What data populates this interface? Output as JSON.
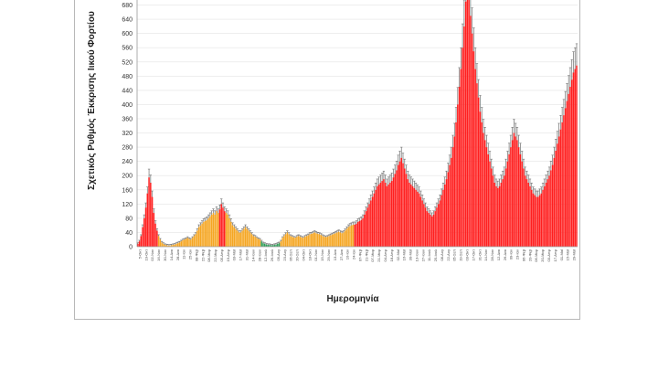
{
  "chart_data": {
    "type": "bar",
    "title": "",
    "xlabel": "Ημερομηνία",
    "ylabel": "Σχετικός Ρυθμός Έκκρισης Ιικού Φορτίου",
    "ylim": [
      0,
      720
    ],
    "yticks": [
      0,
      40,
      80,
      120,
      160,
      200,
      240,
      280,
      320,
      360,
      400,
      440,
      480,
      520,
      560,
      600,
      640,
      680
    ],
    "grid": true,
    "error_bars": true,
    "colors": {
      "red": "#ff1f1f",
      "orange": "#f5a623",
      "green": "#2e9e58",
      "error": "#6f6f6f",
      "grid": "#e3e3e3",
      "axis": "#9a9a9a"
    },
    "x_tick_labels": [
      "5-Οκτ",
      "19-Οκτ",
      "02-Νοε",
      "16-Νοε",
      "30-Νοε",
      "14-Δεκ",
      "28-Δεκ",
      "11-Ιαν",
      "25-Ιαν",
      "08-Φεβ",
      "22-Φεβ",
      "08-Μαρ",
      "22-Μαρ",
      "05-Απρ",
      "19-Απρ",
      "03-Μαϊ",
      "17-Μαϊ",
      "31-Μαϊ",
      "14-Ιουν",
      "28-Ιουν",
      "12-Ιουλ",
      "26-Ιουλ",
      "09-Αυγ",
      "23-Αυγ",
      "06-Σεπ",
      "20-Σεπ",
      "04-Οκτ",
      "18-Οκτ",
      "01-Νοε",
      "15-Νοε",
      "29-Νοε",
      "13-Δεκ",
      "27-Δεκ",
      "10-Ιαν",
      "24-Ιαν",
      "07-Φεβ",
      "21-Φεβ",
      "07-Μαρ",
      "21-Μαρ",
      "04-Απρ",
      "18-Απρ",
      "02-Μαϊ",
      "16-Μαϊ",
      "30-Μαϊ",
      "13-Ιουν",
      "27-Ιουν",
      "11-Ιουλ",
      "25-Ιουλ",
      "08-Αυγ",
      "22-Αυγ",
      "05-Σεπ",
      "19-Σεπ",
      "03-Οκτ",
      "17-Οκτ",
      "31-Οκτ",
      "14-Νοε",
      "28-Νοε",
      "12-Δεκ",
      "26-Δεκ",
      "09-Ιαν",
      "23-Ιαν",
      "06-Φεβ",
      "20-Φεβ",
      "06-Μαρ",
      "20-Μαρ",
      "03-Απρ",
      "17-Απρ",
      "01-Μαϊ",
      "15-Μαϊ",
      "29-Μαϊ"
    ],
    "segments": [
      {
        "color": "red",
        "values": [
          8,
          15,
          30,
          55,
          80,
          110,
          150,
          195,
          180,
          140,
          95,
          65,
          45
        ]
      },
      {
        "color": "orange",
        "values": [
          30,
          20,
          12,
          8,
          5,
          4,
          3,
          3,
          4,
          5,
          6,
          8,
          10,
          12,
          15,
          18,
          20,
          22,
          25,
          22,
          20,
          25,
          30,
          35,
          45,
          55,
          60,
          65,
          70,
          72,
          75,
          80,
          85,
          90,
          95,
          90,
          100,
          95
        ]
      },
      {
        "color": "red",
        "values": [
          105,
          120,
          110,
          100
        ]
      },
      {
        "color": "orange",
        "values": [
          95,
          90,
          80,
          70,
          60,
          55,
          50,
          45,
          40,
          40,
          45,
          50,
          55,
          50,
          45,
          40,
          35,
          30,
          28,
          25,
          22,
          20
        ]
      },
      {
        "color": "green",
        "values": [
          15,
          10,
          8,
          6,
          5,
          5,
          4,
          4,
          5,
          6,
          8,
          10
        ]
      },
      {
        "color": "orange",
        "values": [
          15,
          25,
          30,
          35,
          40,
          35,
          30,
          28,
          26,
          25,
          28,
          30,
          28,
          26,
          25,
          28,
          30,
          32,
          35,
          36,
          38,
          40,
          38,
          36,
          35,
          33,
          30,
          28,
          27,
          28,
          30,
          32,
          34,
          36,
          38,
          40,
          42,
          40,
          38,
          40,
          45,
          50,
          55,
          58,
          60,
          62
        ]
      },
      {
        "color": "red",
        "values": [
          62,
          65,
          70,
          72,
          75,
          80,
          90,
          100,
          110,
          120,
          130,
          140,
          150,
          160,
          170,
          175,
          180,
          185,
          190,
          180,
          170,
          175,
          180,
          185,
          195,
          205,
          215,
          230,
          240,
          250,
          235,
          220,
          205,
          190,
          180,
          175,
          170,
          165,
          160,
          155,
          150,
          140,
          130,
          120,
          110,
          100,
          95,
          90,
          85,
          90,
          100,
          110,
          120,
          130,
          145,
          160,
          175,
          190,
          210,
          230,
          250,
          280,
          310,
          350,
          400,
          450,
          500,
          560,
          620,
          690,
          720,
          700,
          650,
          600,
          550,
          500,
          460,
          420,
          380,
          350,
          320,
          300,
          280,
          260,
          240,
          220,
          200,
          180,
          170,
          165,
          170,
          180,
          190,
          200,
          220,
          240,
          260,
          280,
          300,
          320,
          310,
          300,
          280,
          260,
          240,
          220,
          200,
          190,
          180,
          170,
          160,
          150,
          145,
          140,
          140,
          145,
          150,
          160,
          170,
          180,
          190,
          200,
          215,
          230,
          250,
          270,
          290,
          310,
          330,
          350,
          370,
          390,
          410,
          430,
          450,
          470,
          490,
          500,
          510
        ]
      }
    ]
  }
}
